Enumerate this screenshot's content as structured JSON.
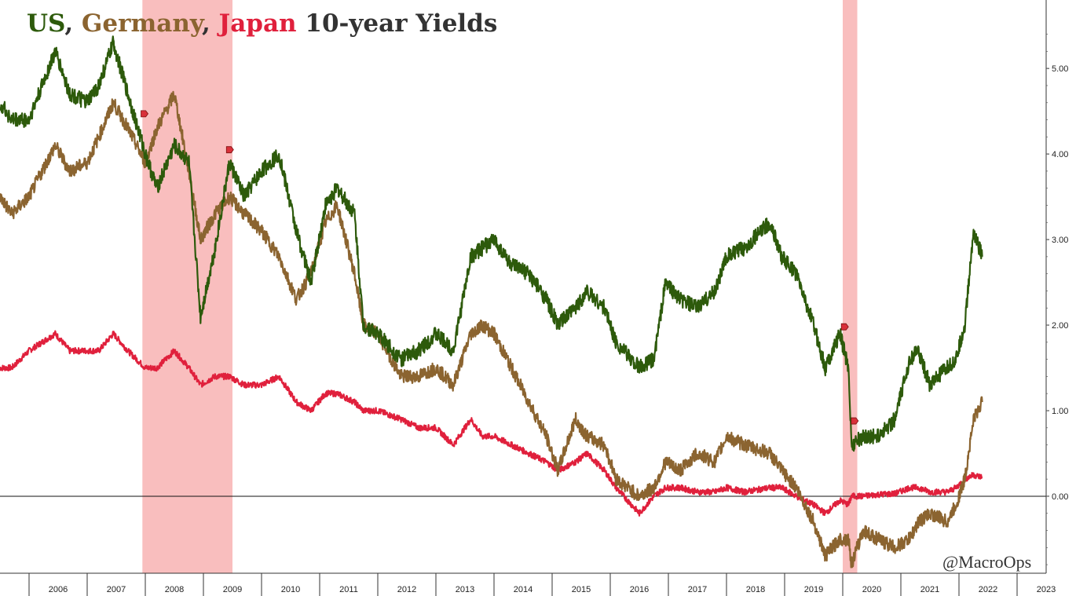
{
  "title": {
    "us": "US",
    "sep1": ", ",
    "germany": "Germany",
    "sep2": ", ",
    "japan": "Japan",
    "rest": " 10-year Yields"
  },
  "watermark": "@MacroOps",
  "colors": {
    "us": "#2d5a0b",
    "germany": "#8b6430",
    "japan": "#e0203c",
    "recession": "#f7a8a8",
    "marker": "#d9303a"
  },
  "chart_data": {
    "type": "line",
    "title": "US, Germany, Japan 10-year Yields",
    "xlabel": "",
    "ylabel": "",
    "xlim": [
      2005.5,
      2023.5
    ],
    "ylim": [
      -0.9,
      5.8
    ],
    "y_ticks": [
      0.0,
      1.0,
      2.0,
      3.0,
      4.0,
      5.0
    ],
    "y_tick_labels": [
      "0.00",
      "1.00",
      "2.00",
      "3.00",
      "4.00",
      "5.00"
    ],
    "x_tick_labels": [
      "2006",
      "2007",
      "2008",
      "2009",
      "2010",
      "2011",
      "2012",
      "2013",
      "2014",
      "2015",
      "2016",
      "2017",
      "2018",
      "2019",
      "2020",
      "2021",
      "2022",
      "2023"
    ],
    "zero_line": 0.0,
    "recession_bands": [
      [
        2007.95,
        2009.5
      ],
      [
        2020.0,
        2020.25
      ]
    ],
    "series": [
      {
        "name": "US",
        "x": [
          2005.5,
          2005.7,
          2006.0,
          2006.45,
          2006.7,
          2007.0,
          2007.2,
          2007.45,
          2007.7,
          2008.0,
          2008.2,
          2008.5,
          2008.75,
          2008.95,
          2009.2,
          2009.45,
          2009.7,
          2010.0,
          2010.3,
          2010.6,
          2010.85,
          2011.1,
          2011.3,
          2011.6,
          2011.75,
          2012.0,
          2012.4,
          2012.7,
          2013.0,
          2013.3,
          2013.6,
          2013.8,
          2014.0,
          2014.3,
          2014.6,
          2014.9,
          2015.1,
          2015.4,
          2015.6,
          2015.9,
          2016.1,
          2016.5,
          2016.75,
          2016.95,
          2017.2,
          2017.5,
          2017.8,
          2018.0,
          2018.3,
          2018.75,
          2018.95,
          2019.2,
          2019.5,
          2019.7,
          2019.95,
          2020.1,
          2020.15,
          2020.35,
          2020.6,
          2020.9,
          2021.15,
          2021.3,
          2021.5,
          2021.8,
          2021.95,
          2022.1,
          2022.25,
          2022.4
        ],
        "values": [
          4.6,
          4.4,
          4.4,
          5.2,
          4.7,
          4.6,
          4.8,
          5.3,
          4.7,
          4.0,
          3.6,
          4.1,
          3.9,
          2.1,
          2.9,
          3.9,
          3.5,
          3.8,
          4.0,
          3.1,
          2.5,
          3.4,
          3.6,
          3.3,
          2.0,
          1.9,
          1.6,
          1.7,
          1.9,
          1.7,
          2.8,
          2.9,
          3.0,
          2.7,
          2.6,
          2.3,
          2.0,
          2.2,
          2.4,
          2.2,
          1.8,
          1.5,
          1.6,
          2.5,
          2.3,
          2.2,
          2.4,
          2.8,
          2.9,
          3.2,
          2.8,
          2.6,
          2.0,
          1.5,
          1.9,
          1.5,
          0.6,
          0.7,
          0.7,
          0.9,
          1.6,
          1.7,
          1.3,
          1.5,
          1.6,
          2.0,
          3.1,
          2.8
        ]
      },
      {
        "name": "Germany",
        "x": [
          2005.5,
          2005.7,
          2006.0,
          2006.45,
          2006.7,
          2007.0,
          2007.2,
          2007.45,
          2007.7,
          2008.0,
          2008.2,
          2008.5,
          2008.75,
          2008.95,
          2009.2,
          2009.45,
          2009.7,
          2010.0,
          2010.3,
          2010.6,
          2010.85,
          2011.1,
          2011.3,
          2011.6,
          2011.75,
          2012.0,
          2012.4,
          2012.7,
          2013.0,
          2013.3,
          2013.6,
          2013.8,
          2014.0,
          2014.3,
          2014.6,
          2014.9,
          2015.1,
          2015.4,
          2015.6,
          2015.9,
          2016.1,
          2016.5,
          2016.75,
          2016.95,
          2017.2,
          2017.5,
          2017.8,
          2018.0,
          2018.3,
          2018.75,
          2018.95,
          2019.2,
          2019.5,
          2019.7,
          2019.95,
          2020.1,
          2020.15,
          2020.35,
          2020.6,
          2020.9,
          2021.15,
          2021.3,
          2021.5,
          2021.8,
          2021.95,
          2022.1,
          2022.25,
          2022.4
        ],
        "values": [
          3.5,
          3.3,
          3.5,
          4.1,
          3.8,
          3.9,
          4.2,
          4.6,
          4.3,
          3.9,
          4.3,
          4.7,
          3.8,
          3.0,
          3.3,
          3.5,
          3.3,
          3.1,
          2.8,
          2.3,
          2.6,
          3.2,
          3.4,
          2.6,
          2.0,
          1.9,
          1.4,
          1.4,
          1.5,
          1.3,
          1.9,
          2.0,
          1.9,
          1.5,
          1.1,
          0.7,
          0.3,
          0.9,
          0.7,
          0.6,
          0.2,
          0.0,
          0.1,
          0.4,
          0.3,
          0.5,
          0.4,
          0.7,
          0.6,
          0.5,
          0.3,
          0.1,
          -0.3,
          -0.7,
          -0.5,
          -0.5,
          -0.8,
          -0.4,
          -0.5,
          -0.6,
          -0.5,
          -0.3,
          -0.2,
          -0.3,
          -0.1,
          0.2,
          0.9,
          1.1
        ]
      },
      {
        "name": "Japan",
        "x": [
          2005.5,
          2005.7,
          2006.0,
          2006.45,
          2006.7,
          2007.0,
          2007.2,
          2007.45,
          2007.7,
          2008.0,
          2008.2,
          2008.5,
          2008.75,
          2008.95,
          2009.2,
          2009.45,
          2009.7,
          2010.0,
          2010.3,
          2010.6,
          2010.85,
          2011.1,
          2011.3,
          2011.6,
          2011.75,
          2012.0,
          2012.4,
          2012.7,
          2013.0,
          2013.3,
          2013.6,
          2013.8,
          2014.0,
          2014.3,
          2014.6,
          2014.9,
          2015.1,
          2015.4,
          2015.6,
          2015.9,
          2016.1,
          2016.5,
          2016.75,
          2016.95,
          2017.2,
          2017.5,
          2017.8,
          2018.0,
          2018.3,
          2018.75,
          2018.95,
          2019.2,
          2019.5,
          2019.7,
          2019.95,
          2020.1,
          2020.15,
          2020.35,
          2020.6,
          2020.9,
          2021.15,
          2021.3,
          2021.5,
          2021.8,
          2021.95,
          2022.1,
          2022.25,
          2022.4
        ],
        "values": [
          1.5,
          1.5,
          1.7,
          1.9,
          1.7,
          1.7,
          1.7,
          1.9,
          1.7,
          1.5,
          1.5,
          1.7,
          1.5,
          1.3,
          1.4,
          1.4,
          1.3,
          1.3,
          1.4,
          1.1,
          1.0,
          1.2,
          1.2,
          1.1,
          1.0,
          1.0,
          0.9,
          0.8,
          0.8,
          0.6,
          0.9,
          0.7,
          0.7,
          0.6,
          0.5,
          0.4,
          0.3,
          0.4,
          0.5,
          0.3,
          0.1,
          -0.2,
          0.0,
          0.1,
          0.1,
          0.05,
          0.05,
          0.1,
          0.05,
          0.1,
          0.1,
          0.0,
          -0.1,
          -0.2,
          -0.05,
          -0.1,
          0.0,
          0.0,
          0.02,
          0.03,
          0.1,
          0.1,
          0.05,
          0.05,
          0.1,
          0.2,
          0.25,
          0.22
        ]
      }
    ]
  }
}
